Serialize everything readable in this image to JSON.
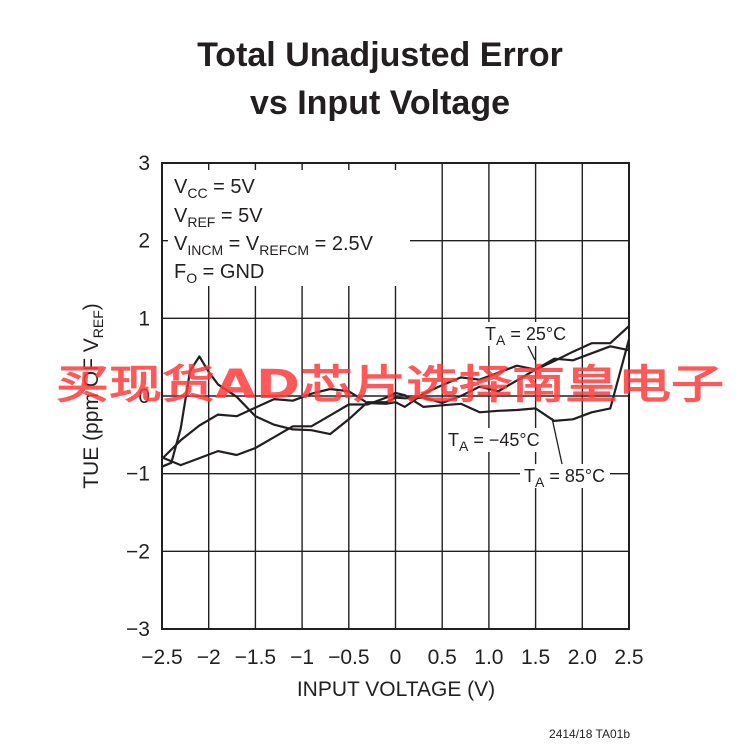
{
  "chart_data": {
    "type": "line",
    "title": [
      "Total Unadjusted Error",
      "vs Input Voltage"
    ],
    "xlabel": "INPUT VOLTAGE (V)",
    "ylabel": {
      "main": "TUE (ppm OF V",
      "sub": "REF",
      "close": ")"
    },
    "xlim": [
      -2.5,
      2.5
    ],
    "ylim": [
      -3,
      3
    ],
    "x_ticks": [
      -2.5,
      -2,
      -1.5,
      -1,
      -0.5,
      0,
      0.5,
      1,
      1.5,
      2,
      2.5
    ],
    "x_tick_labels": [
      "−2.5",
      "−2",
      "−1.5",
      "−1",
      "−0.5",
      "0",
      "0.5",
      "1.0",
      "1.5",
      "2.0",
      "2.5"
    ],
    "y_ticks": [
      -3,
      -2,
      -1,
      0,
      1,
      2,
      3
    ],
    "y_tick_labels": [
      "−3",
      "−2",
      "−1",
      "0",
      "1",
      "2",
      "3"
    ],
    "grid": true,
    "conditions": [
      {
        "main": "V",
        "sub": "CC",
        "rest": " = 5V"
      },
      {
        "main": "V",
        "sub": "REF",
        "rest": " = 5V"
      },
      {
        "main": "V",
        "sub": "INCM",
        "rest": " = V",
        "sub2": "REFCM",
        "rest2": " = 2.5V"
      },
      {
        "main": "F",
        "sub": "O",
        "rest": " = GND"
      }
    ],
    "series": [
      {
        "label": {
          "main": "T",
          "sub": "A",
          "rest": " = 25°C"
        },
        "x": [
          -2.5,
          -2.3,
          -2.1,
          -1.9,
          -1.7,
          -1.5,
          -1.3,
          -1.1,
          -0.9,
          -0.7,
          -0.5,
          -0.3,
          -0.1,
          0,
          0.1,
          0.3,
          0.5,
          0.7,
          0.9,
          1.1,
          1.3,
          1.5,
          1.7,
          1.9,
          2.1,
          2.3,
          2.5
        ],
        "y": [
          -0.75,
          -0.55,
          -0.4,
          -0.3,
          -0.22,
          -0.15,
          -0.08,
          0.0,
          0.05,
          0.07,
          0.0,
          -0.05,
          -0.1,
          -0.12,
          -0.08,
          0.05,
          0.12,
          0.18,
          0.25,
          0.3,
          0.35,
          0.4,
          0.47,
          0.55,
          0.62,
          0.72,
          0.9
        ]
      },
      {
        "label": {
          "main": "T",
          "sub": "A",
          "rest": " = −45°C"
        },
        "x": [
          -2.5,
          -2.3,
          -2.1,
          -1.9,
          -1.7,
          -1.5,
          -1.3,
          -1.1,
          -0.9,
          -0.7,
          -0.5,
          -0.3,
          -0.1,
          0,
          0.1,
          0.3,
          0.5,
          0.7,
          0.9,
          1.1,
          1.3,
          1.5,
          1.7,
          1.9,
          2.1,
          2.3,
          2.5
        ],
        "y": [
          -0.85,
          -0.85,
          -0.8,
          -0.75,
          -0.7,
          -0.65,
          -0.55,
          -0.45,
          -0.35,
          -0.25,
          -0.15,
          -0.05,
          0.0,
          0.02,
          -0.05,
          -0.1,
          -0.12,
          -0.14,
          -0.15,
          -0.17,
          -0.2,
          -0.22,
          -0.28,
          -0.3,
          -0.25,
          -0.1,
          0.75
        ]
      },
      {
        "label": {
          "main": "T",
          "sub": "A",
          "rest": " = 85°C"
        },
        "x": [
          -2.5,
          -2.4,
          -2.3,
          -2.2,
          -2.1,
          -2.0,
          -1.9,
          -1.7,
          -1.5,
          -1.3,
          -1.1,
          -0.9,
          -0.7,
          -0.5,
          -0.3,
          -0.1,
          0,
          0.1,
          0.3,
          0.5,
          0.7,
          0.9,
          1.1,
          1.3,
          1.5,
          1.7,
          1.9,
          2.1,
          2.3,
          2.5
        ],
        "y": [
          -0.95,
          -0.8,
          -0.4,
          0.3,
          0.45,
          0.35,
          0.15,
          -0.05,
          -0.2,
          -0.35,
          -0.45,
          -0.5,
          -0.45,
          -0.3,
          -0.12,
          -0.02,
          0.0,
          -0.05,
          -0.08,
          -0.05,
          0.0,
          0.08,
          0.12,
          0.22,
          0.32,
          0.42,
          0.5,
          0.55,
          0.6,
          0.65
        ]
      }
    ]
  },
  "footnote": "2414/18 TA01b",
  "watermark": "买现货AD芯片选择南皇电子",
  "colors": {
    "ink": "#231f20",
    "watermark": "#ff3b3b"
  }
}
